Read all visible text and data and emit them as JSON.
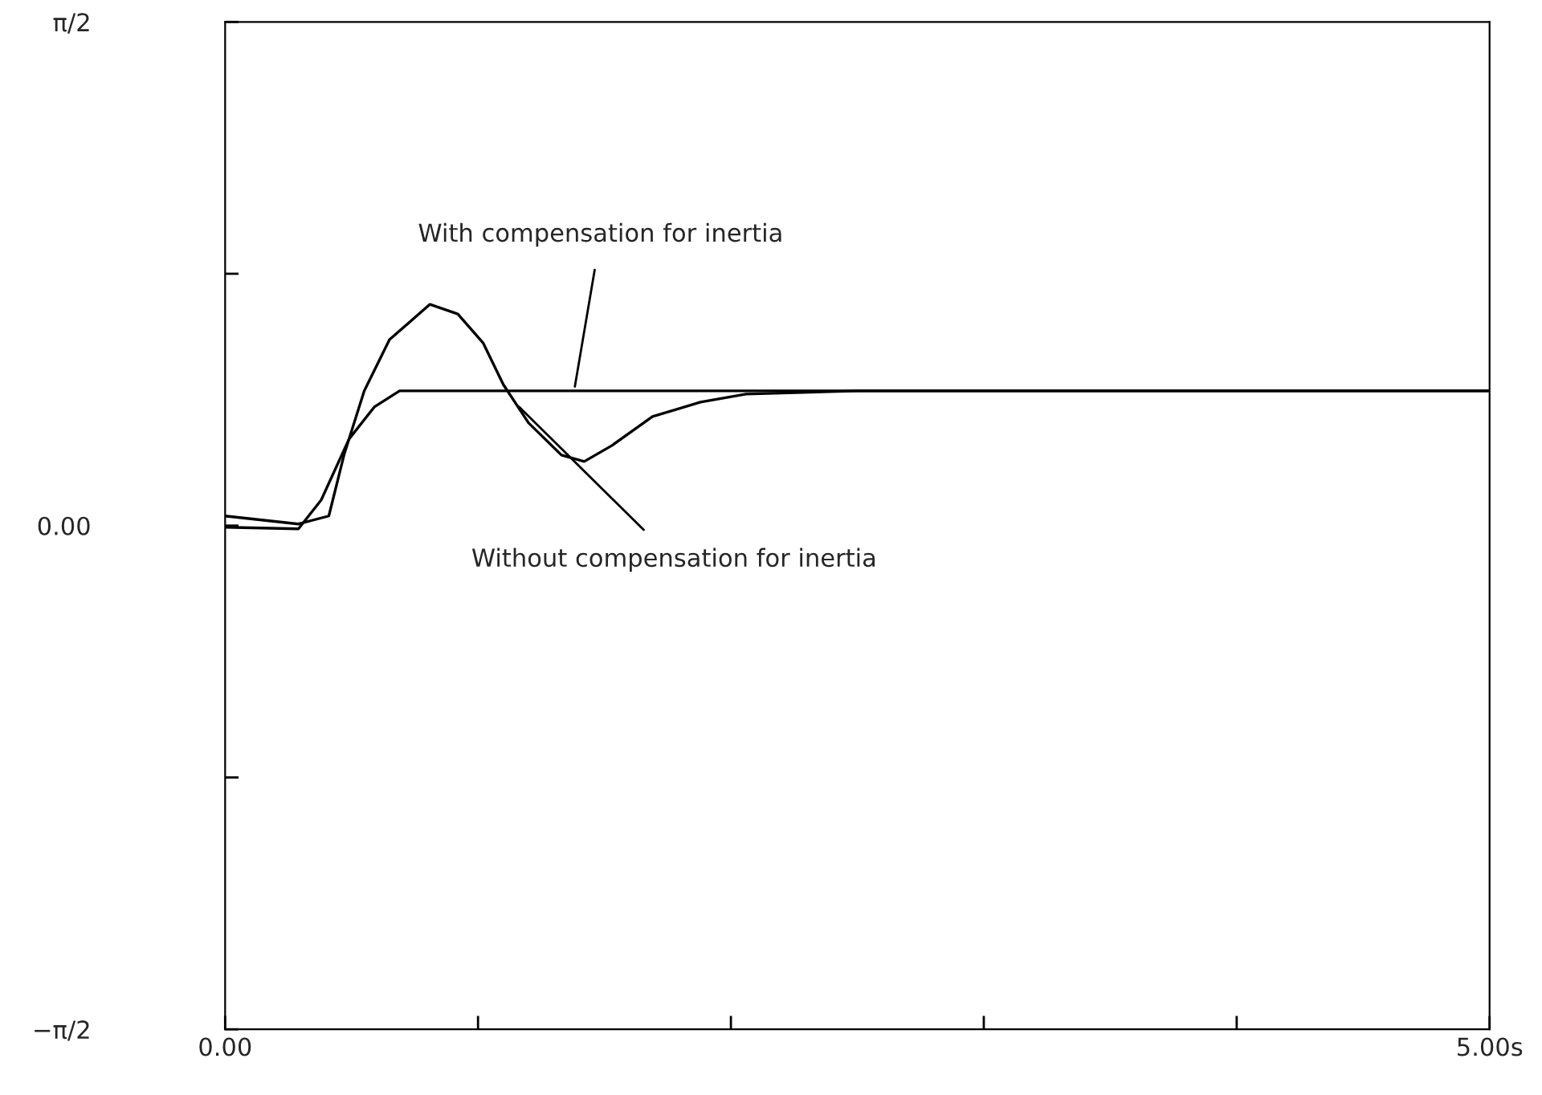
{
  "chart_data": {
    "type": "line",
    "xlim": [
      0,
      5
    ],
    "xticks": [
      {
        "value": 0,
        "label": "0.00"
      },
      {
        "value": 1,
        "label": null
      },
      {
        "value": 2,
        "label": null
      },
      {
        "value": 3,
        "label": null
      },
      {
        "value": 4,
        "label": null
      },
      {
        "value": 5,
        "label": "5.00s"
      }
    ],
    "ylim": [
      -1.5708,
      1.5708
    ],
    "yticks": [
      {
        "value": -1.5708,
        "label": "−π/2"
      },
      {
        "value": -0.7854,
        "label": null
      },
      {
        "value": 0,
        "label": "0.00"
      },
      {
        "value": 0.7854,
        "label": null
      },
      {
        "value": 1.5708,
        "label": "π/2"
      }
    ],
    "series": [
      {
        "color": "#000000",
        "x": [
          0,
          0.29,
          0.38,
          0.49,
          0.59,
          0.69,
          1.0,
          1.5,
          2.0,
          2.5,
          3.0,
          3.5,
          4.0,
          4.5,
          5.0
        ],
        "values": [
          -0.005,
          -0.01,
          0.08,
          0.27,
          0.37,
          0.42,
          0.42,
          0.42,
          0.42,
          0.42,
          0.42,
          0.42,
          0.42,
          0.42,
          0.42
        ]
      },
      {
        "color": "#000000",
        "x": [
          0,
          0.29,
          0.41,
          0.47,
          0.55,
          0.65,
          0.81,
          0.92,
          1.02,
          1.1,
          1.2,
          1.33,
          1.42,
          1.53,
          1.69,
          1.88,
          2.06,
          2.5,
          3.0,
          3.5,
          4.0,
          4.5,
          5.0
        ],
        "values": [
          0.03,
          0.005,
          0.03,
          0.22,
          0.42,
          0.58,
          0.69,
          0.66,
          0.57,
          0.44,
          0.32,
          0.22,
          0.2,
          0.25,
          0.34,
          0.385,
          0.41,
          0.42,
          0.42,
          0.42,
          0.42,
          0.42,
          0.42
        ]
      }
    ],
    "annotations": [
      {
        "text": "With compensation for inertia",
        "x": 1.38,
        "y": 0.42
      },
      {
        "text": "Without compensation for inertia",
        "x": 1.15,
        "y": 0.38
      }
    ]
  }
}
